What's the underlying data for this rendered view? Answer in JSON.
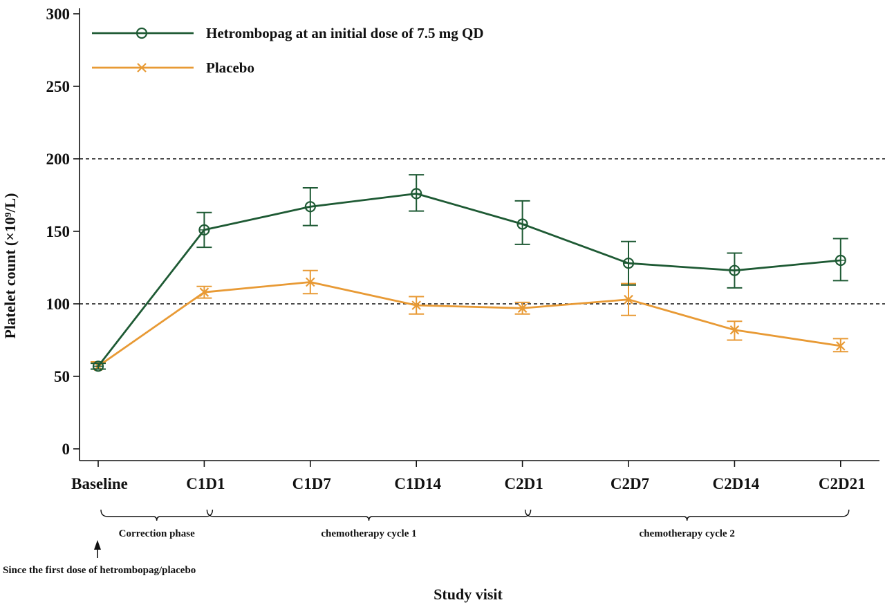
{
  "chart_data": {
    "type": "line",
    "xlabel": "Study visit",
    "ylabel": "Platelet count (×10⁹/L)",
    "categories": [
      "Baseline",
      "C1D1",
      "C1D7",
      "C1D14",
      "C2D1",
      "C2D7",
      "C2D14",
      "C2D21"
    ],
    "ylim": [
      0,
      300
    ],
    "yticks": [
      0,
      50,
      100,
      150,
      200,
      250,
      300
    ],
    "reference_lines": [
      100,
      200
    ],
    "series": [
      {
        "name": "Hetrombopag at an initial dose of 7.5 mg QD",
        "marker": "circle",
        "color": "#1e5a34",
        "values": [
          57,
          151,
          167,
          176,
          155,
          128,
          123,
          130
        ],
        "error_low": [
          55,
          139,
          154,
          164,
          141,
          113,
          111,
          116
        ],
        "error_high": [
          59,
          163,
          180,
          189,
          171,
          143,
          135,
          145
        ]
      },
      {
        "name": "Placebo",
        "marker": "x",
        "color": "#e89a35",
        "values": [
          57,
          108,
          115,
          99,
          97,
          103,
          82,
          71
        ],
        "error_low": [
          55,
          104,
          107,
          93,
          93,
          92,
          75,
          67
        ],
        "error_high": [
          60,
          112,
          123,
          105,
          101,
          114,
          88,
          76
        ]
      }
    ],
    "phases": [
      {
        "label": "Correction phase",
        "from": "Baseline",
        "to": "C1D1"
      },
      {
        "label": "chemotherapy cycle 1",
        "from": "C1D1",
        "to": "C2D1"
      },
      {
        "label": "chemotherapy cycle 2",
        "from": "C2D1",
        "to": "C2D21"
      }
    ],
    "annotation": "Since the first dose of hetrombopag/placebo",
    "legend_position": "top-left"
  }
}
